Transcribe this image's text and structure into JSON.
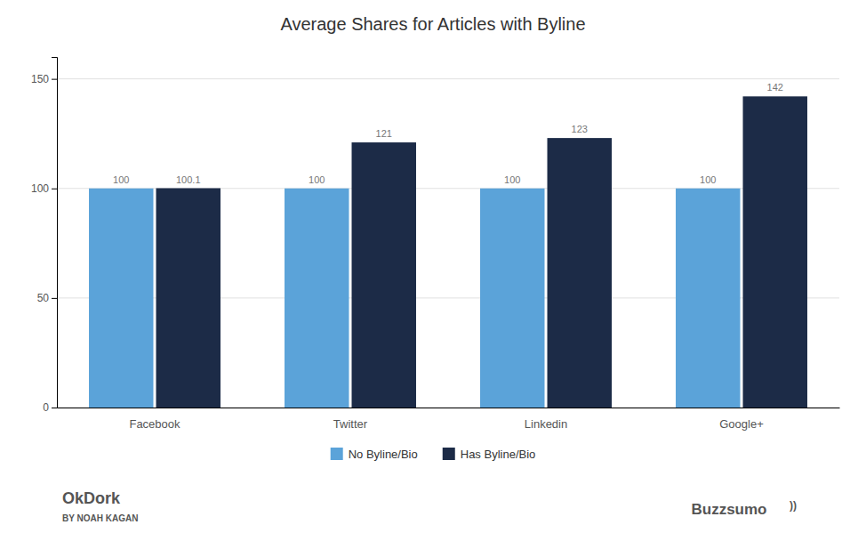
{
  "chart_data": {
    "type": "bar",
    "title": "Average Shares for Articles with Byline",
    "categories": [
      "Facebook",
      "Twitter",
      "Linkedin",
      "Google+"
    ],
    "series": [
      {
        "name": "No Byline/Bio",
        "color": "#5ba3d9",
        "values": [
          100,
          100,
          100,
          100
        ]
      },
      {
        "name": "Has Byline/Bio",
        "color": "#1c2b47",
        "values": [
          100.1,
          121,
          123,
          142
        ]
      }
    ],
    "ylim": [
      0,
      160
    ],
    "yticks": [
      0,
      50,
      100,
      150
    ],
    "grid": true,
    "legend": "bottom",
    "data_labels": true,
    "annotations": [
      "OkDork",
      "BY NOAH KAGAN",
      "Buzzsumo",
      "))"
    ]
  }
}
